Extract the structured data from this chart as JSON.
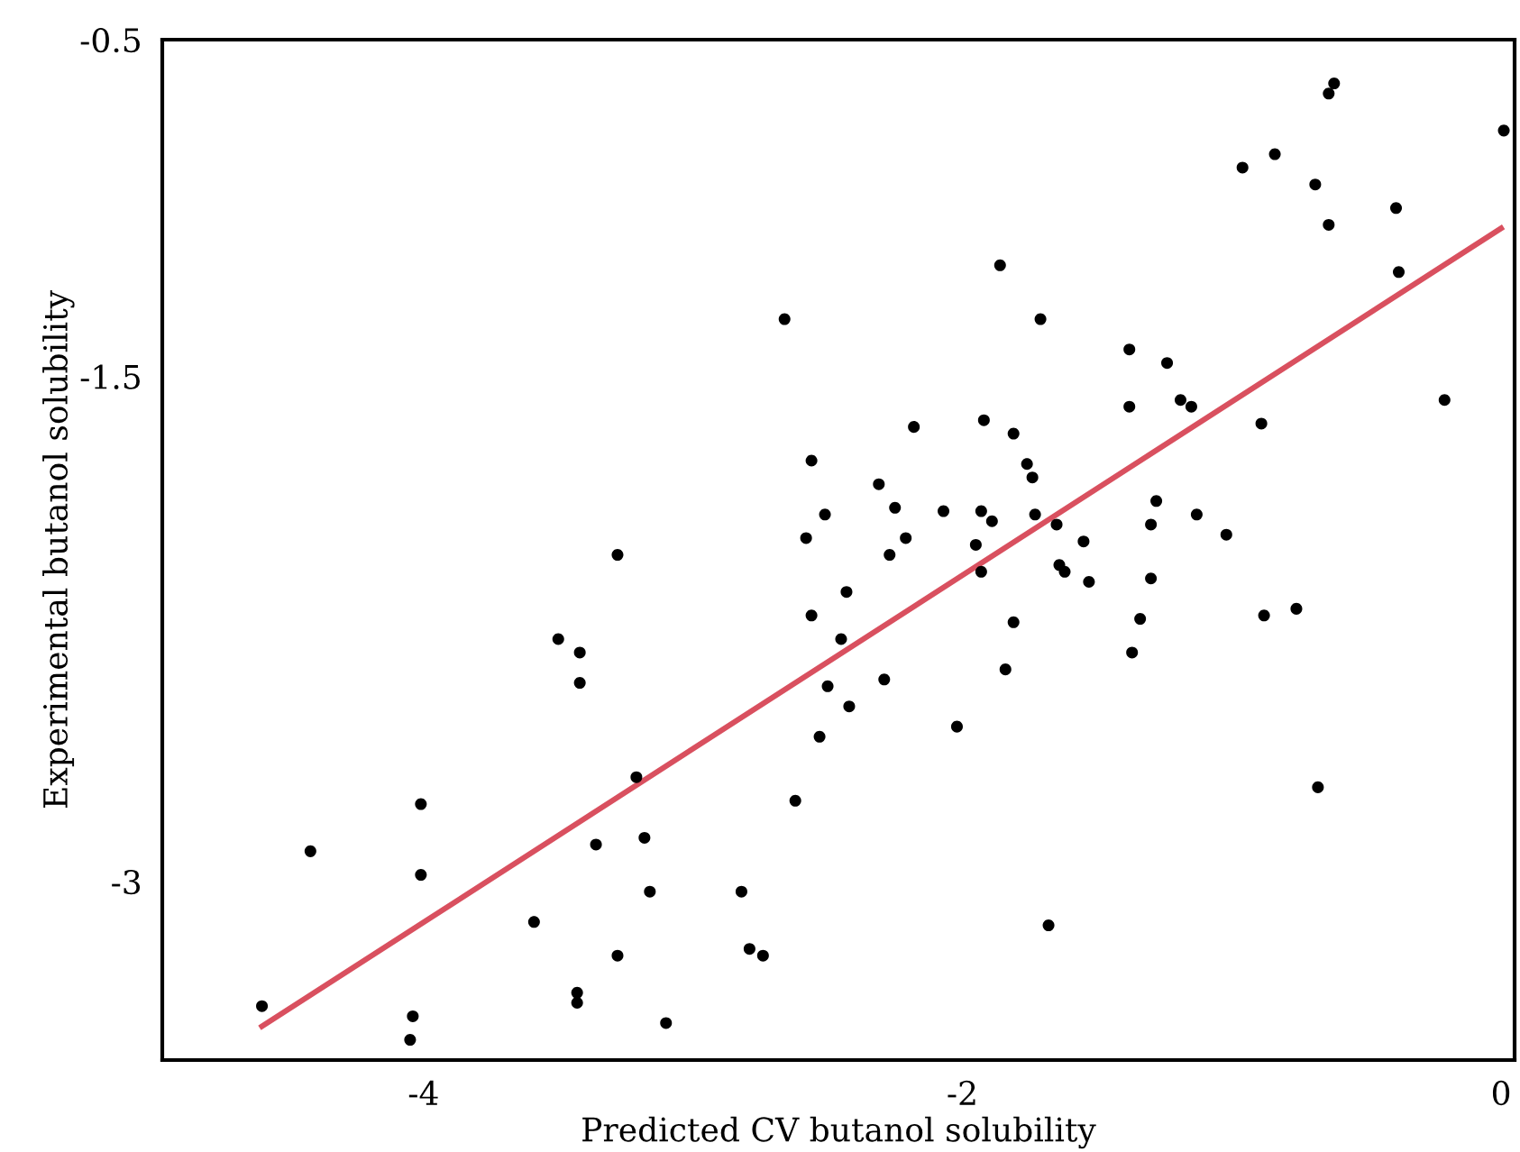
{
  "chart_data": {
    "type": "scatter",
    "xlabel": "Predicted CV butanol solubility",
    "ylabel": "Experimental butanol solubility",
    "xlim": [
      -4.97,
      0.05
    ],
    "ylim": [
      -3.53,
      -0.5
    ],
    "xticks": [
      -4,
      -2,
      0
    ],
    "yticks": [
      -3,
      -1.5,
      -0.5
    ],
    "grid": false,
    "legend": false,
    "series": [
      {
        "color": "#000000",
        "marker": "circle",
        "x": [
          -4.6,
          -4.42,
          -4.01,
          -4.01,
          -4.04,
          -4.05,
          -3.59,
          -3.5,
          -3.42,
          -3.42,
          -3.43,
          -3.43,
          -3.36,
          -3.28,
          -3.28,
          -3.21,
          -3.18,
          -3.16,
          -3.1,
          -2.82,
          -2.79,
          -2.74,
          -2.66,
          -2.62,
          -2.58,
          -2.56,
          -2.56,
          -2.53,
          -2.51,
          -2.5,
          -2.45,
          -2.43,
          -2.42,
          -2.31,
          -2.29,
          -2.27,
          -2.25,
          -2.21,
          -2.18,
          -2.07,
          -2.02,
          -1.95,
          -1.93,
          -1.93,
          -1.92,
          -1.89,
          -1.86,
          -1.84,
          -1.81,
          -1.81,
          -1.76,
          -1.74,
          -1.73,
          -1.71,
          -1.65,
          -1.64,
          -1.62,
          -1.55,
          -1.53,
          -1.38,
          -1.38,
          -1.37,
          -1.34,
          -1.3,
          -1.3,
          -1.28,
          -1.24,
          -1.19,
          -1.15,
          -1.13,
          -1.02,
          -0.96,
          -0.84,
          -0.89,
          -0.88,
          -0.76,
          -0.69,
          -0.68,
          -0.64,
          -0.64,
          -0.62,
          -0.39,
          -0.38,
          -0.21,
          0.01,
          -1.68
        ],
        "values": [
          -3.37,
          -2.91,
          -2.77,
          -2.98,
          -3.4,
          -3.47,
          -3.12,
          -2.28,
          -2.32,
          -2.41,
          -3.33,
          -3.36,
          -2.89,
          -2.03,
          -3.22,
          -2.69,
          -2.87,
          -3.03,
          -3.42,
          -3.03,
          -3.2,
          -3.22,
          -1.33,
          -2.76,
          -1.98,
          -2.21,
          -1.75,
          -2.57,
          -1.91,
          -2.42,
          -2.28,
          -2.14,
          -2.48,
          -1.82,
          -2.4,
          -2.03,
          -1.89,
          -1.98,
          -1.65,
          -1.9,
          -2.54,
          -2.0,
          -1.9,
          -2.08,
          -1.63,
          -1.93,
          -1.17,
          -2.37,
          -2.23,
          -1.67,
          -1.76,
          -1.8,
          -1.91,
          -1.33,
          -1.94,
          -2.06,
          -2.08,
          -1.99,
          -2.11,
          -1.42,
          -1.59,
          -2.32,
          -2.22,
          -1.94,
          -2.1,
          -1.87,
          -1.46,
          -1.57,
          -1.59,
          -1.91,
          -1.97,
          -0.88,
          -0.84,
          -1.64,
          -2.21,
          -2.19,
          -0.93,
          -2.72,
          -1.05,
          -0.66,
          -0.63,
          -1.0,
          -1.19,
          -1.57,
          -0.77,
          -3.13
        ]
      },
      {
        "type": "line",
        "marker": "none",
        "color": "#d9505f",
        "x": [
          -4.6,
          0.0
        ],
        "values": [
          -3.43,
          -1.06
        ]
      }
    ]
  }
}
